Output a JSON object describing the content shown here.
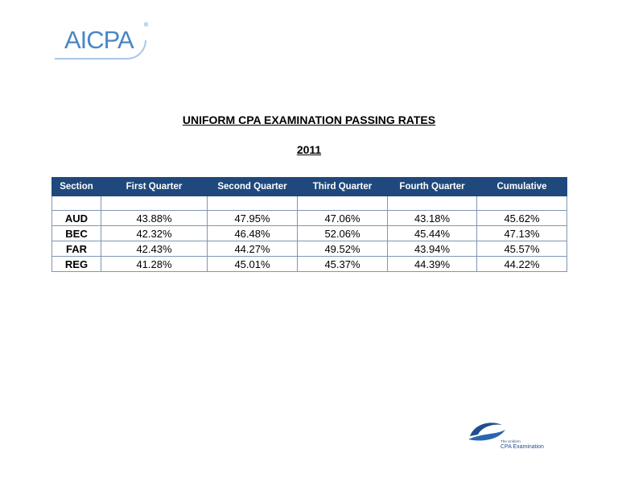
{
  "logo": {
    "text": "AICPA",
    "mark": "®"
  },
  "title": "UNIFORM CPA EXAMINATION PASSING RATES",
  "year": "2011",
  "table": {
    "headers": [
      "Section",
      "First  Quarter",
      "Second Quarter",
      "Third Quarter",
      "Fourth Quarter",
      "Cumulative"
    ],
    "rows": [
      [
        "AUD",
        "43.88%",
        "47.95%",
        "47.06%",
        "43.18%",
        "45.62%"
      ],
      [
        "BEC",
        "42.32%",
        "46.48%",
        "52.06%",
        "45.44%",
        "47.13%"
      ],
      [
        "FAR",
        "42.43%",
        "44.27%",
        "49.52%",
        "43.94%",
        "45.57%"
      ],
      [
        "REG",
        "41.28%",
        "45.01%",
        "45.37%",
        "44.39%",
        "44.22%"
      ]
    ]
  },
  "footer_logo": {
    "line1": "The Uniform",
    "line2": "CPA Examination"
  }
}
